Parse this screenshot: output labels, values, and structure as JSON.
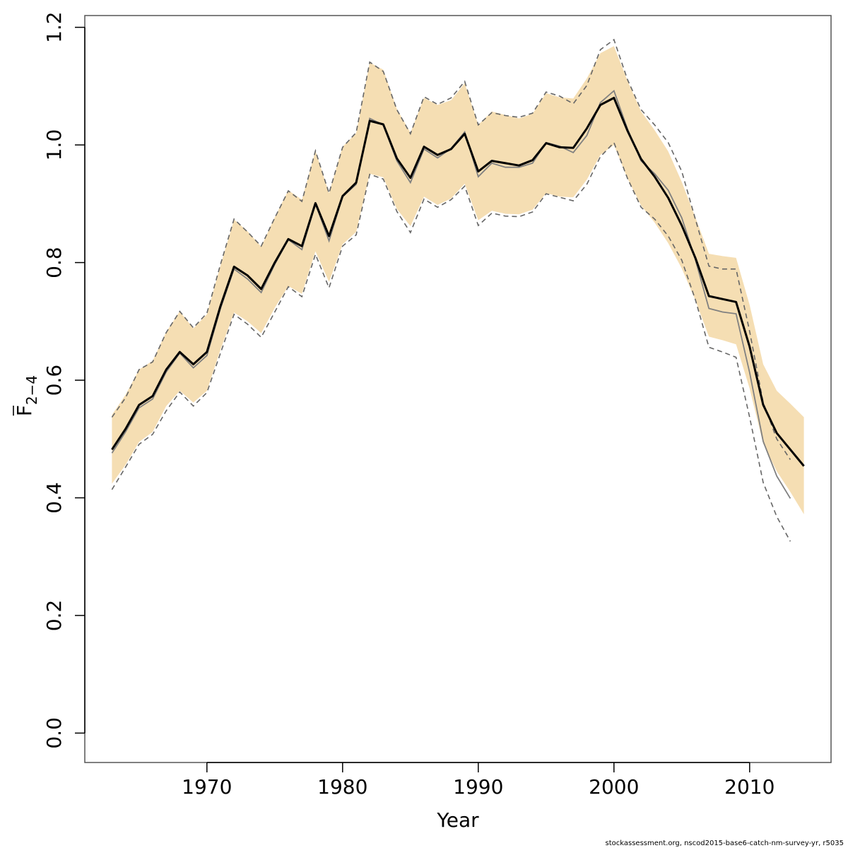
{
  "chart_data": {
    "type": "line",
    "xlabel": "Year",
    "ylabel": {
      "base": "F",
      "subscript": "2−4",
      "overline": true
    },
    "xlim": [
      1961,
      2016
    ],
    "ylim": [
      -0.05,
      1.22
    ],
    "x_ticks": [
      1970,
      1980,
      1990,
      2000,
      2010
    ],
    "y_ticks": [
      0.0,
      0.2,
      0.4,
      0.6,
      0.8,
      1.0,
      1.2
    ],
    "y_tick_labels": [
      "0.0",
      "0.2",
      "0.4",
      "0.6",
      "0.8",
      "1.0",
      "1.2"
    ],
    "grid": false,
    "colors": {
      "band": "#f5deb3",
      "current": "#000000",
      "previous": "#808080",
      "previous_bounds": "#666666",
      "frame": "#555555"
    },
    "series": [
      {
        "role": "current-estimate",
        "x": [
          1963,
          1964,
          1965,
          1966,
          1967,
          1968,
          1969,
          1970,
          1971,
          1972,
          1973,
          1974,
          1975,
          1976,
          1977,
          1978,
          1979,
          1980,
          1981,
          1982,
          1983,
          1984,
          1985,
          1986,
          1987,
          1988,
          1989,
          1990,
          1991,
          1992,
          1993,
          1994,
          1995,
          1996,
          1997,
          1998,
          1999,
          2000,
          2001,
          2002,
          2003,
          2004,
          2005,
          2006,
          2007,
          2008,
          2009,
          2010,
          2011,
          2012,
          2013,
          2014
        ],
        "values": [
          0.482,
          0.517,
          0.558,
          0.573,
          0.618,
          0.648,
          0.627,
          0.648,
          0.726,
          0.793,
          0.778,
          0.755,
          0.8,
          0.84,
          0.828,
          0.901,
          0.845,
          0.913,
          0.936,
          1.041,
          1.035,
          0.977,
          0.944,
          0.997,
          0.983,
          0.993,
          1.019,
          0.955,
          0.973,
          0.969,
          0.965,
          0.974,
          1.003,
          0.996,
          0.995,
          1.028,
          1.068,
          1.08,
          1.024,
          0.976,
          0.946,
          0.91,
          0.863,
          0.808,
          0.743,
          0.738,
          0.733,
          0.657,
          0.558,
          0.51,
          0.482,
          0.454
        ]
      },
      {
        "role": "confidence-band-upper",
        "x": [
          1963,
          1964,
          1965,
          1966,
          1967,
          1968,
          1969,
          1970,
          1971,
          1972,
          1973,
          1974,
          1975,
          1976,
          1977,
          1978,
          1979,
          1980,
          1981,
          1982,
          1983,
          1984,
          1985,
          1986,
          1987,
          1988,
          1989,
          1990,
          1991,
          1992,
          1993,
          1994,
          1995,
          1996,
          1997,
          1998,
          1999,
          2000,
          2001,
          2002,
          2003,
          2004,
          2005,
          2006,
          2007,
          2008,
          2009,
          2010,
          2011,
          2012,
          2013,
          2014
        ],
        "values": [
          0.541,
          0.575,
          0.618,
          0.633,
          0.682,
          0.717,
          0.688,
          0.712,
          0.795,
          0.873,
          0.853,
          0.827,
          0.877,
          0.923,
          0.907,
          0.99,
          0.918,
          0.997,
          1.02,
          1.14,
          1.128,
          1.061,
          1.021,
          1.08,
          1.068,
          1.076,
          1.105,
          1.034,
          1.057,
          1.051,
          1.045,
          1.053,
          1.088,
          1.081,
          1.079,
          1.113,
          1.156,
          1.168,
          1.109,
          1.057,
          1.025,
          0.989,
          0.937,
          0.877,
          0.815,
          0.811,
          0.808,
          0.728,
          0.627,
          0.582,
          0.56,
          0.537
        ]
      },
      {
        "role": "confidence-band-lower",
        "x": [
          1963,
          1964,
          1965,
          1966,
          1967,
          1968,
          1969,
          1970,
          1971,
          1972,
          1973,
          1974,
          1975,
          1976,
          1977,
          1978,
          1979,
          1980,
          1981,
          1982,
          1983,
          1984,
          1985,
          1986,
          1987,
          1988,
          1989,
          1990,
          1991,
          1992,
          1993,
          1994,
          1995,
          1996,
          1997,
          1998,
          1999,
          2000,
          2001,
          2002,
          2003,
          2004,
          2005,
          2006,
          2007,
          2008,
          2009,
          2010,
          2011,
          2012,
          2013,
          2014
        ],
        "values": [
          0.424,
          0.456,
          0.495,
          0.512,
          0.556,
          0.582,
          0.562,
          0.582,
          0.652,
          0.715,
          0.7,
          0.68,
          0.723,
          0.76,
          0.747,
          0.819,
          0.767,
          0.831,
          0.852,
          0.951,
          0.945,
          0.891,
          0.862,
          0.912,
          0.898,
          0.909,
          0.934,
          0.872,
          0.888,
          0.883,
          0.882,
          0.89,
          0.918,
          0.912,
          0.911,
          0.941,
          0.983,
          1.0,
          0.943,
          0.897,
          0.868,
          0.833,
          0.79,
          0.736,
          0.674,
          0.668,
          0.661,
          0.586,
          0.492,
          0.445,
          0.41,
          0.372
        ]
      },
      {
        "role": "previous-estimate",
        "x": [
          1963,
          1964,
          1965,
          1966,
          1967,
          1968,
          1969,
          1970,
          1971,
          1972,
          1973,
          1974,
          1975,
          1976,
          1977,
          1978,
          1979,
          1980,
          1981,
          1982,
          1983,
          1984,
          1985,
          1986,
          1987,
          1988,
          1989,
          1990,
          1991,
          1992,
          1993,
          1994,
          1995,
          1996,
          1997,
          1998,
          1999,
          2000,
          2001,
          2002,
          2003,
          2004,
          2005,
          2006,
          2007,
          2008,
          2009,
          2010,
          2011,
          2012,
          2013
        ],
        "values": [
          0.476,
          0.512,
          0.553,
          0.568,
          0.614,
          0.646,
          0.621,
          0.642,
          0.722,
          0.789,
          0.772,
          0.749,
          0.797,
          0.839,
          0.822,
          0.9,
          0.837,
          0.912,
          0.933,
          1.045,
          1.034,
          0.973,
          0.936,
          0.993,
          0.978,
          0.994,
          1.022,
          0.946,
          0.969,
          0.962,
          0.962,
          0.969,
          1.004,
          0.998,
          0.987,
          1.016,
          1.072,
          1.092,
          1.027,
          0.973,
          0.951,
          0.923,
          0.876,
          0.805,
          0.722,
          0.716,
          0.713,
          0.613,
          0.496,
          0.437,
          0.399
        ]
      },
      {
        "role": "previous-upper",
        "x": [
          1963,
          1964,
          1965,
          1966,
          1967,
          1968,
          1969,
          1970,
          1971,
          1972,
          1973,
          1974,
          1975,
          1976,
          1977,
          1978,
          1979,
          1980,
          1981,
          1982,
          1983,
          1984,
          1985,
          1986,
          1987,
          1988,
          1989,
          1990,
          1991,
          1992,
          1993,
          1994,
          1995,
          1996,
          1997,
          1998,
          1999,
          2000,
          2001,
          2002,
          2003,
          2004,
          2005,
          2006,
          2007,
          2008,
          2009,
          2010,
          2011,
          2012,
          2013
        ],
        "values": [
          0.537,
          0.57,
          0.618,
          0.631,
          0.681,
          0.717,
          0.689,
          0.714,
          0.797,
          0.874,
          0.852,
          0.828,
          0.876,
          0.922,
          0.904,
          0.99,
          0.918,
          0.996,
          1.021,
          1.141,
          1.125,
          1.06,
          1.019,
          1.082,
          1.069,
          1.08,
          1.108,
          1.034,
          1.055,
          1.05,
          1.047,
          1.054,
          1.09,
          1.083,
          1.07,
          1.101,
          1.162,
          1.179,
          1.111,
          1.06,
          1.034,
          1.004,
          0.955,
          0.874,
          0.794,
          0.789,
          0.789,
          0.683,
          0.562,
          0.5,
          0.465
        ]
      },
      {
        "role": "previous-lower",
        "x": [
          1963,
          1964,
          1965,
          1966,
          1967,
          1968,
          1969,
          1970,
          1971,
          1972,
          1973,
          1974,
          1975,
          1976,
          1977,
          1978,
          1979,
          1980,
          1981,
          1982,
          1983,
          1984,
          1985,
          1986,
          1987,
          1988,
          1989,
          1990,
          1991,
          1992,
          1993,
          1994,
          1995,
          1996,
          1997,
          1998,
          1999,
          2000,
          2001,
          2002,
          2003,
          2004,
          2005,
          2006,
          2007,
          2008,
          2009,
          2010,
          2011,
          2012,
          2013
        ],
        "values": [
          0.414,
          0.452,
          0.491,
          0.508,
          0.548,
          0.58,
          0.556,
          0.579,
          0.646,
          0.712,
          0.695,
          0.673,
          0.716,
          0.759,
          0.742,
          0.814,
          0.757,
          0.828,
          0.847,
          0.95,
          0.942,
          0.887,
          0.851,
          0.908,
          0.894,
          0.907,
          0.93,
          0.863,
          0.884,
          0.879,
          0.878,
          0.886,
          0.917,
          0.911,
          0.905,
          0.933,
          0.98,
          1.004,
          0.943,
          0.894,
          0.874,
          0.845,
          0.804,
          0.737,
          0.656,
          0.648,
          0.639,
          0.537,
          0.426,
          0.368,
          0.326
        ]
      }
    ]
  },
  "footer": "stockassessment.org, nscod2015-base6-catch-nm-survey-yr, r5035"
}
